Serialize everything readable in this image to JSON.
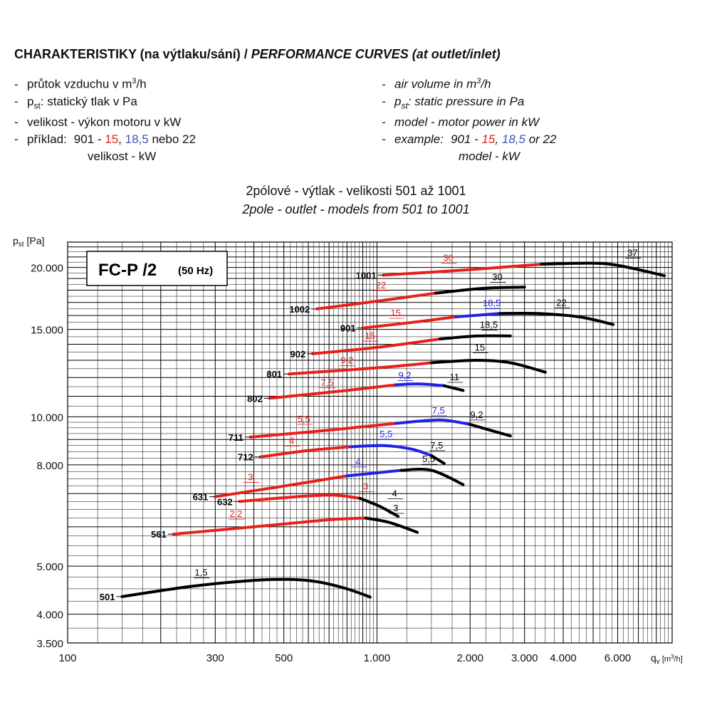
{
  "header": {
    "title_cz": "CHARAKTERISTIKY (na výtlaku/sání) /",
    "title_en": "PERFORMANCE CURVES (at outlet/inlet)"
  },
  "legend_cz": {
    "l1_pre": "průtok vzduchu v m",
    "l1_sup": "3",
    "l1_post": "/h",
    "l2_p": "p",
    "l2_sub": "st",
    "l2_text": ": statický tlak v Pa",
    "l3": "velikost - výkon motoru v kW",
    "l4_label": "příklad:",
    "l4_model": "901 -",
    "l4_red": "15",
    "l4_comma": ",",
    "l4_blue": "18,5",
    "l4_tail": "nebo 22",
    "l5": "velikost - kW"
  },
  "legend_en": {
    "l1_pre": "air volume in m",
    "l1_sup": "3",
    "l1_post": "/h",
    "l2_p": "p",
    "l2_sub": "st",
    "l2_text": ": static pressure in Pa",
    "l3": "model - motor power in kW",
    "l4_label": "example:",
    "l4_model": "901 -",
    "l4_red": "15",
    "l4_comma": ",",
    "l4_blue": "18,5",
    "l4_tail": "or 22",
    "l5": "model - kW"
  },
  "subtitle_cz": "2pólové - výtlak - velikosti 501 až 1001",
  "subtitle_en": "2pole - outlet - models from 501 to 1001",
  "chart_data": {
    "type": "line",
    "title": "FC-P /2",
    "subtitle": "(50 Hz)",
    "xscale": "log",
    "yscale": "log",
    "xlim": [
      100,
      9000
    ],
    "ylim": [
      3500,
      22500
    ],
    "xlabel": "q",
    "xlabel_sub": "v",
    "xlabel_unit_pre": "[m",
    "xlabel_unit_sup": "3",
    "xlabel_unit_post": "/h]",
    "ylabel": "p",
    "ylabel_sub": "st",
    "ylabel_unit": "[Pa]",
    "x_ticks": [
      {
        "v": 100,
        "label": "100"
      },
      {
        "v": 300,
        "label": "300"
      },
      {
        "v": 500,
        "label": "500"
      },
      {
        "v": 1000,
        "label": "1.000"
      },
      {
        "v": 2000,
        "label": "2.000"
      },
      {
        "v": 3000,
        "label": "3.000"
      },
      {
        "v": 4000,
        "label": "4.000"
      },
      {
        "v": 6000,
        "label": "6.000"
      }
    ],
    "y_ticks": [
      {
        "v": 3500,
        "label": "3.500"
      },
      {
        "v": 4000,
        "label": "4.000"
      },
      {
        "v": 5000,
        "label": "5.000"
      },
      {
        "v": 8000,
        "label": "8.000"
      },
      {
        "v": 10000,
        "label": "10.000"
      },
      {
        "v": 15000,
        "label": "15.000"
      },
      {
        "v": 20000,
        "label": "20.000"
      }
    ],
    "colors": {
      "red": "#e8201c",
      "blue": "#1f22e6",
      "black": "#000000"
    },
    "series": [
      {
        "name": "501",
        "points": [
          [
            150,
            4340
          ],
          [
            250,
            4550
          ],
          [
            400,
            4680
          ],
          [
            520,
            4700
          ],
          [
            640,
            4650
          ],
          [
            800,
            4500
          ],
          [
            950,
            4330
          ]
        ],
        "segments": [
          {
            "from": 0,
            "to": 6,
            "color": "black"
          }
        ],
        "labels": [
          {
            "text": "1,5",
            "x": 270,
            "y": 4780,
            "color": "black"
          }
        ]
      },
      {
        "name": "561",
        "points": [
          [
            220,
            5800
          ],
          [
            400,
            6000
          ],
          [
            700,
            6200
          ],
          [
            920,
            6250
          ],
          [
            1100,
            6120
          ],
          [
            1350,
            5850
          ]
        ],
        "segments": [
          {
            "from": 0,
            "to": 3,
            "color": "red"
          },
          {
            "from": 3,
            "to": 5,
            "color": "black"
          }
        ],
        "labels": [
          {
            "text": "2,2",
            "x": 350,
            "y": 6280,
            "color": "red"
          },
          {
            "text": "3",
            "x": 1150,
            "y": 6450,
            "color": "black"
          }
        ]
      },
      {
        "name": "631",
        "points": [
          [
            300,
            6900
          ],
          [
            500,
            7250
          ],
          [
            800,
            7600
          ],
          [
            1200,
            7800
          ],
          [
            1500,
            7800
          ],
          [
            1900,
            7300
          ]
        ],
        "segments": [
          {
            "from": 0,
            "to": 2,
            "color": "red"
          },
          {
            "from": 2,
            "to": 3,
            "color": "blue"
          },
          {
            "from": 3,
            "to": 5,
            "color": "black"
          }
        ],
        "labels": [
          {
            "text": "3",
            "x": 390,
            "y": 7450,
            "color": "red"
          },
          {
            "text": "4",
            "x": 870,
            "y": 8000,
            "color": "blue"
          },
          {
            "text": "5,5",
            "x": 1470,
            "y": 8100,
            "color": "black"
          }
        ]
      },
      {
        "name": "632",
        "points": [
          [
            360,
            6750
          ],
          [
            550,
            6900
          ],
          [
            720,
            6950
          ],
          [
            880,
            6850
          ],
          [
            1020,
            6600
          ],
          [
            1170,
            6300
          ]
        ],
        "segments": [
          {
            "from": 0,
            "to": 3,
            "color": "red"
          },
          {
            "from": 3,
            "to": 5,
            "color": "black"
          }
        ],
        "labels": [
          {
            "text": "3",
            "x": 920,
            "y": 7130,
            "color": "red"
          },
          {
            "text": "4",
            "x": 1140,
            "y": 6900,
            "color": "black"
          }
        ]
      },
      {
        "name": "711",
        "points": [
          [
            390,
            9100
          ],
          [
            700,
            9400
          ],
          [
            1150,
            9700
          ],
          [
            1600,
            9850
          ],
          [
            2000,
            9650
          ],
          [
            2700,
            9150
          ]
        ],
        "segments": [
          {
            "from": 0,
            "to": 2,
            "color": "red"
          },
          {
            "from": 2,
            "to": 4,
            "color": "blue"
          },
          {
            "from": 4,
            "to": 5,
            "color": "black"
          }
        ],
        "labels": [
          {
            "text": "5,5",
            "x": 580,
            "y": 9750,
            "color": "red"
          },
          {
            "text": "7,5",
            "x": 1580,
            "y": 10150,
            "color": "blue"
          },
          {
            "text": "9,2",
            "x": 2100,
            "y": 9950,
            "color": "black"
          }
        ]
      },
      {
        "name": "712",
        "points": [
          [
            420,
            8300
          ],
          [
            600,
            8550
          ],
          [
            820,
            8700
          ],
          [
            1050,
            8750
          ],
          [
            1300,
            8600
          ],
          [
            1500,
            8350
          ],
          [
            1650,
            8050
          ]
        ],
        "segments": [
          {
            "from": 0,
            "to": 2,
            "color": "red"
          },
          {
            "from": 2,
            "to": 5,
            "color": "blue"
          },
          {
            "from": 5,
            "to": 6,
            "color": "black"
          }
        ],
        "labels": [
          {
            "text": "4",
            "x": 530,
            "y": 8820,
            "color": "red"
          },
          {
            "text": "5,5",
            "x": 1070,
            "y": 9100,
            "color": "blue"
          },
          {
            "text": "7,5",
            "x": 1560,
            "y": 8630,
            "color": "black"
          }
        ]
      },
      {
        "name": "802",
        "points": [
          [
            450,
            10900
          ],
          [
            800,
            11300
          ],
          [
            1150,
            11600
          ],
          [
            1380,
            11650
          ],
          [
            1650,
            11550
          ],
          [
            1900,
            11300
          ]
        ],
        "segments": [
          {
            "from": 0,
            "to": 2,
            "color": "red"
          },
          {
            "from": 2,
            "to": 4,
            "color": "blue"
          },
          {
            "from": 4,
            "to": 5,
            "color": "black"
          }
        ],
        "labels": [
          {
            "text": "7,5",
            "x": 690,
            "y": 11550,
            "color": "red"
          },
          {
            "text": "9,2",
            "x": 1230,
            "y": 11950,
            "color": "blue"
          },
          {
            "text": "11",
            "x": 1780,
            "y": 11850,
            "color": "black"
          }
        ]
      },
      {
        "name": "801",
        "points": [
          [
            520,
            12200
          ],
          [
            1000,
            12550
          ],
          [
            1500,
            12850
          ],
          [
            2100,
            13000
          ],
          [
            2700,
            12850
          ],
          [
            3500,
            12300
          ]
        ],
        "segments": [
          {
            "from": 0,
            "to": 2,
            "color": "red"
          },
          {
            "from": 2,
            "to": 5,
            "color": "black"
          }
        ],
        "labels": [
          {
            "text": "9,2",
            "x": 800,
            "y": 12800,
            "color": "red"
          },
          {
            "text": "15",
            "x": 2150,
            "y": 13600,
            "color": "black"
          }
        ]
      },
      {
        "name": "902",
        "points": [
          [
            620,
            13400
          ],
          [
            1000,
            13800
          ],
          [
            1600,
            14350
          ],
          [
            2100,
            14550
          ],
          [
            2700,
            14550
          ]
        ],
        "segments": [
          {
            "from": 0,
            "to": 2,
            "color": "red"
          },
          {
            "from": 2,
            "to": 4,
            "color": "black"
          }
        ],
        "labels": [
          {
            "text": "15",
            "x": 950,
            "y": 14350,
            "color": "red"
          },
          {
            "text": "18,5",
            "x": 2300,
            "y": 15100,
            "color": "black"
          }
        ]
      },
      {
        "name": "901",
        "points": [
          [
            900,
            15100
          ],
          [
            1300,
            15500
          ],
          [
            1800,
            15900
          ],
          [
            2500,
            16150
          ],
          [
            3300,
            16150
          ],
          [
            4500,
            15900
          ],
          [
            5800,
            15350
          ]
        ],
        "segments": [
          {
            "from": 0,
            "to": 2,
            "color": "red"
          },
          {
            "from": 2,
            "to": 3,
            "color": "blue"
          },
          {
            "from": 3,
            "to": 6,
            "color": "black"
          }
        ],
        "labels": [
          {
            "text": "15",
            "x": 1150,
            "y": 15950,
            "color": "red"
          },
          {
            "text": "18,5",
            "x": 2350,
            "y": 16700,
            "color": "blue"
          },
          {
            "text": "22",
            "x": 3950,
            "y": 16750,
            "color": "black"
          }
        ]
      },
      {
        "name": "1002",
        "points": [
          [
            640,
            16500
          ],
          [
            1000,
            17100
          ],
          [
            1550,
            17750
          ],
          [
            2200,
            18150
          ],
          [
            3000,
            18250
          ]
        ],
        "segments": [
          {
            "from": 0,
            "to": 2,
            "color": "red"
          },
          {
            "from": 2,
            "to": 4,
            "color": "black"
          }
        ],
        "labels": [
          {
            "text": "22",
            "x": 1030,
            "y": 18150,
            "color": "red"
          },
          {
            "text": "30",
            "x": 2450,
            "y": 18850,
            "color": "black"
          }
        ]
      },
      {
        "name": "1001",
        "points": [
          [
            1050,
            19300
          ],
          [
            2000,
            19800
          ],
          [
            3400,
            20300
          ],
          [
            4800,
            20400
          ],
          [
            6000,
            20200
          ],
          [
            8500,
            19250
          ]
        ],
        "segments": [
          {
            "from": 0,
            "to": 2,
            "color": "red"
          },
          {
            "from": 2,
            "to": 5,
            "color": "black"
          }
        ],
        "labels": [
          {
            "text": "30",
            "x": 1700,
            "y": 20600,
            "color": "red"
          },
          {
            "text": "37",
            "x": 6700,
            "y": 21100,
            "color": "black"
          }
        ]
      }
    ]
  }
}
